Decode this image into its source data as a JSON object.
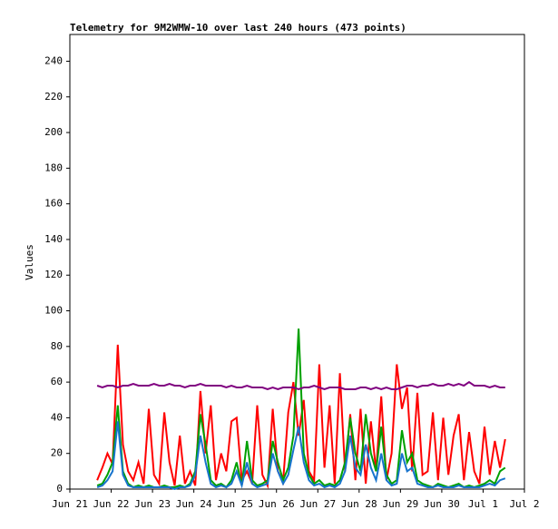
{
  "chart_data": {
    "type": "line",
    "title": "Telemetry for 9M2WMW-10 over last 240 hours (473 points)",
    "y_label": "Values",
    "xlim": [
      21,
      32
    ],
    "ylim": [
      0,
      255
    ],
    "xticks": [
      {
        "value": 21,
        "label": "Jun 21"
      },
      {
        "value": 22,
        "label": "Jun 22"
      },
      {
        "value": 23,
        "label": "Jun 23"
      },
      {
        "value": 24,
        "label": "Jun 24"
      },
      {
        "value": 25,
        "label": "Jun 25"
      },
      {
        "value": 26,
        "label": "Jun 26"
      },
      {
        "value": 27,
        "label": "Jun 27"
      },
      {
        "value": 28,
        "label": "Jun 28"
      },
      {
        "value": 29,
        "label": "Jun 29"
      },
      {
        "value": 30,
        "label": "Jun 30"
      },
      {
        "value": 31,
        "label": "Jul 1"
      },
      {
        "value": 32,
        "label": "Jul 2"
      }
    ],
    "yticks": [
      0,
      20,
      40,
      60,
      80,
      100,
      120,
      140,
      160,
      180,
      200,
      220,
      240
    ],
    "x": [
      21.66,
      21.785,
      21.91,
      22.035,
      22.16,
      22.285,
      22.41,
      22.535,
      22.66,
      22.785,
      22.91,
      23.035,
      23.16,
      23.285,
      23.41,
      23.535,
      23.66,
      23.785,
      23.91,
      24.035,
      24.16,
      24.285,
      24.41,
      24.535,
      24.66,
      24.785,
      24.91,
      25.035,
      25.16,
      25.285,
      25.41,
      25.535,
      25.66,
      25.785,
      25.91,
      26.035,
      26.16,
      26.285,
      26.41,
      26.535,
      26.66,
      26.785,
      26.91,
      27.035,
      27.16,
      27.285,
      27.41,
      27.535,
      27.66,
      27.785,
      27.91,
      28.035,
      28.16,
      28.285,
      28.41,
      28.535,
      28.66,
      28.785,
      28.91,
      29.035,
      29.16,
      29.285,
      29.41,
      29.535,
      29.66,
      29.785,
      29.91,
      30.035,
      30.16,
      30.285,
      30.41,
      30.535,
      30.66,
      30.785,
      30.91,
      31.035,
      31.16,
      31.285,
      31.41,
      31.535
    ],
    "series": [
      {
        "color": "#ff0000",
        "values": [
          5,
          12,
          20,
          14,
          81,
          25,
          10,
          5,
          15,
          3,
          45,
          8,
          3,
          43,
          15,
          2,
          30,
          3,
          10,
          2,
          55,
          20,
          47,
          5,
          20,
          10,
          38,
          40,
          5,
          10,
          3,
          47,
          8,
          2,
          45,
          10,
          4,
          43,
          60,
          30,
          50,
          10,
          5,
          70,
          12,
          47,
          3,
          65,
          10,
          42,
          5,
          45,
          3,
          38,
          10,
          52,
          5,
          20,
          70,
          45,
          57,
          10,
          54,
          8,
          10,
          43,
          5,
          40,
          8,
          30,
          42,
          5,
          32,
          10,
          3,
          35,
          8,
          27,
          12,
          28
        ]
      },
      {
        "color": "#00a000",
        "values": [
          2,
          3,
          8,
          15,
          47,
          10,
          3,
          1,
          2,
          1,
          2,
          1,
          1,
          2,
          1,
          1,
          2,
          1,
          3,
          10,
          42,
          25,
          5,
          2,
          3,
          1,
          5,
          15,
          2,
          27,
          5,
          2,
          3,
          5,
          27,
          15,
          5,
          12,
          30,
          90,
          20,
          8,
          3,
          5,
          2,
          3,
          2,
          5,
          15,
          40,
          20,
          10,
          42,
          20,
          10,
          35,
          8,
          3,
          5,
          33,
          15,
          20,
          5,
          3,
          2,
          1,
          3,
          2,
          1,
          2,
          3,
          1,
          2,
          1,
          2,
          3,
          5,
          3,
          10,
          12
        ]
      },
      {
        "color": "#1874cd",
        "values": [
          1,
          2,
          5,
          10,
          38,
          8,
          2,
          1,
          1,
          1,
          1,
          1,
          1,
          1,
          1,
          0,
          1,
          1,
          2,
          8,
          30,
          15,
          3,
          1,
          2,
          1,
          3,
          10,
          2,
          15,
          3,
          1,
          2,
          3,
          20,
          10,
          3,
          8,
          22,
          35,
          15,
          5,
          2,
          3,
          1,
          2,
          1,
          3,
          10,
          30,
          12,
          8,
          25,
          12,
          5,
          20,
          5,
          2,
          3,
          20,
          10,
          12,
          3,
          2,
          1,
          1,
          2,
          1,
          1,
          1,
          2,
          1,
          1,
          1,
          1,
          2,
          3,
          2,
          5,
          6
        ]
      },
      {
        "color": "#800080",
        "values": [
          58,
          57,
          58,
          58,
          57,
          58,
          58,
          59,
          58,
          58,
          58,
          59,
          58,
          58,
          59,
          58,
          58,
          57,
          58,
          58,
          59,
          58,
          58,
          58,
          58,
          57,
          58,
          57,
          57,
          58,
          57,
          57,
          57,
          56,
          57,
          56,
          57,
          57,
          57,
          56,
          57,
          57,
          58,
          57,
          56,
          57,
          57,
          57,
          56,
          56,
          56,
          57,
          57,
          56,
          57,
          56,
          57,
          56,
          56,
          57,
          58,
          58,
          57,
          58,
          58,
          59,
          58,
          58,
          59,
          58,
          59,
          58,
          60,
          58,
          58,
          58,
          57,
          58,
          57,
          57
        ]
      }
    ]
  }
}
